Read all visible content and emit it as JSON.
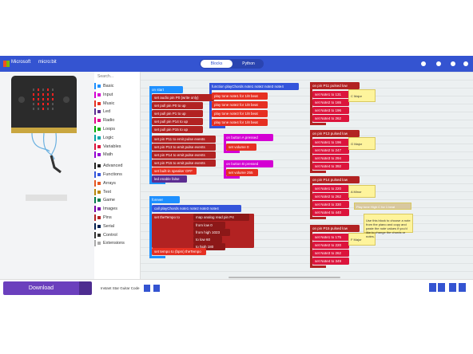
{
  "header": {
    "brand": "Microsoft",
    "product": "micro:bit",
    "tabs": [
      "Blocks",
      "Python"
    ]
  },
  "toolbox": {
    "search": "Search...",
    "categories": [
      {
        "name": "Basic",
        "color": "#1e90ff"
      },
      {
        "name": "Input",
        "color": "#d400d4"
      },
      {
        "name": "Music",
        "color": "#e63022"
      },
      {
        "name": "Led",
        "color": "#5c2d91"
      },
      {
        "name": "Radio",
        "color": "#e3008c"
      },
      {
        "name": "Loops",
        "color": "#00aa00"
      },
      {
        "name": "Logic",
        "color": "#00a4a6"
      },
      {
        "name": "Variables",
        "color": "#dc143c"
      },
      {
        "name": "Math",
        "color": "#9400d3"
      },
      {
        "name": "Advanced",
        "color": "#222222"
      },
      {
        "name": "Functions",
        "color": "#3455db"
      },
      {
        "name": "Arrays",
        "color": "#e65722"
      },
      {
        "name": "Text",
        "color": "#b8860b"
      },
      {
        "name": "Game",
        "color": "#007a4b"
      },
      {
        "name": "Images",
        "color": "#7600a8"
      },
      {
        "name": "Pins",
        "color": "#b22222"
      },
      {
        "name": "Serial",
        "color": "#002050"
      },
      {
        "name": "Control",
        "color": "#333333"
      },
      {
        "name": "Extensions",
        "color": "#aaaaaa"
      }
    ]
  },
  "workspace": {
    "blocks": [
      "on start",
      "set audio pin P0 (write only)",
      "set pull pin P0 to up",
      "set pull pin P1 to up",
      "set pull pin P14 to up",
      "set pull pin P15 to up",
      "set pin P11 to emit pulse events",
      "set pin P13 to emit pulse events",
      "set pin P14 to emit pulse events",
      "set pin P15 to emit pulse events",
      "set built-in speaker OFF",
      "led enable false",
      "function playChords note1 note2 note3 note4",
      "play tone note1 for 1/8 beat",
      "play tone note2 for 1/8 beat",
      "play tone note3 for 1/8 beat",
      "play tone note4 for 1/8 beat",
      "on button A pressed",
      "set volume 0",
      "on button B pressed",
      "set volume 255",
      "forever",
      "call playChords note1 note2 note3 note4",
      "set theTempo to",
      "map analog read pin P4",
      "from low 0",
      "from high 1023",
      "to low 60",
      "to high 180",
      "set tempo to (bpm) theTempo",
      "on pin P11 pulsed low",
      "set Note1 to 131",
      "set Note2 to 165",
      "set Note3 to 196",
      "set Note4 to 262",
      "on pin P13 pulsed low",
      "set Note1 to 196",
      "set Note2 to 247",
      "set Note3 to 294",
      "set Note4 to 392",
      "on pin P14 pulsed low",
      "set Note1 to 220",
      "set Note2 to 262",
      "set Note3 to 330",
      "set Note4 to 440",
      "on pin P15 pulsed low",
      "set Note1 to 175",
      "set Note2 to 220",
      "set Note3 to 262",
      "set Note4 to 349"
    ],
    "comments": [
      "C Major",
      "G Major",
      "A Minor",
      "F Major",
      "Use this block to choose a note from the piano and copy and paste the note values if you'd like to change the chords or notes.",
      "Play tone High C for 1 beat"
    ]
  },
  "footer": {
    "download": "Download",
    "project": "Instant Star Guitar Code"
  }
}
